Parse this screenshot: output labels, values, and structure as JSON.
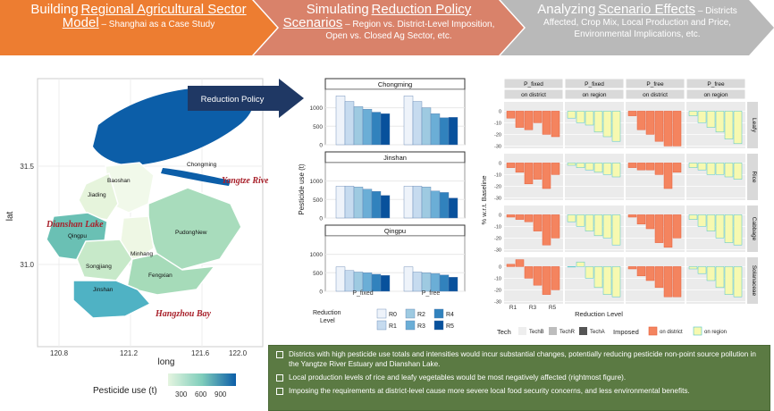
{
  "steps": [
    {
      "bold": "Building",
      "underlined": "Regional Agricultural Sector Model",
      "rest": "– Shanghai as a Case Study",
      "color": "#ed7d31"
    },
    {
      "bold": "Simulating",
      "underlined": "Reduction Policy Scenarios",
      "rest": "– Region vs. District-Level Imposition, Open vs. Closed Ag Sector, etc.",
      "color": "#d9826a"
    },
    {
      "bold": "Analyzing",
      "underlined": "Scenario Effects",
      "rest": "– Districts Affected, Crop Mix, Local Production and Price, Environmental Implications, etc.",
      "color": "#b9b9b9"
    }
  ],
  "arrow_label": "Reduction Policy",
  "map": {
    "xlabel": "long",
    "ylabel": "lat",
    "xticks": [
      "120.8",
      "121.2",
      "121.6",
      "122.0"
    ],
    "yticks": [
      "31.5",
      "31.0"
    ],
    "districts": [
      "Chongming",
      "Baoshan",
      "Jiading",
      "Qingpu",
      "PudongNew",
      "Minhang",
      "Songjiang",
      "Fengxian",
      "Jinshan"
    ],
    "annotations": [
      "Yangtze River Estuary",
      "Dianshan Lake",
      "Hangzhou Bay"
    ],
    "legend_title": "Pesticide use (t)",
    "legend_ticks": [
      "300",
      "600",
      "900"
    ],
    "colors": {
      "low": "#e5f5e0",
      "mid": "#7fcdbb",
      "high": "#0c5ea8"
    }
  },
  "bar_panels": {
    "ylabel": "Pesticide use (t)",
    "x_categories": [
      "P_fixed",
      "P_free"
    ],
    "levels": [
      "R0",
      "R1",
      "R2",
      "R3",
      "R4",
      "R5"
    ],
    "level_colors": [
      "#eef3fa",
      "#c6dbef",
      "#9ecae1",
      "#6baed6",
      "#3182bd",
      "#08519c"
    ],
    "legend_title": "Reduction Level",
    "yticks": [
      "0",
      "500",
      "1000"
    ]
  },
  "chart_data": [
    {
      "type": "bar",
      "title": "",
      "facets": [
        "Chongming",
        "Jinshan",
        "Qingpu"
      ],
      "categories": [
        "P_fixed",
        "P_free"
      ],
      "ylabel": "Pesticide use (t)",
      "ylim": [
        0,
        1400
      ],
      "series": [
        {
          "name": "R0",
          "values": {
            "Chongming": [
              1320,
              1320
            ],
            "Jinshan": [
              860,
              860
            ],
            "Qingpu": [
              660,
              660
            ]
          }
        },
        {
          "name": "R1",
          "values": {
            "Chongming": [
              1170,
              1170
            ],
            "Jinshan": [
              860,
              860
            ],
            "Qingpu": [
              560,
              520
            ]
          }
        },
        {
          "name": "R2",
          "values": {
            "Chongming": [
              1030,
              1000
            ],
            "Jinshan": [
              840,
              840
            ],
            "Qingpu": [
              520,
              500
            ]
          }
        },
        {
          "name": "R3",
          "values": {
            "Chongming": [
              960,
              840
            ],
            "Jinshan": [
              780,
              730
            ],
            "Qingpu": [
              500,
              480
            ]
          }
        },
        {
          "name": "R4",
          "values": {
            "Chongming": [
              880,
              730
            ],
            "Jinshan": [
              720,
              690
            ],
            "Qingpu": [
              460,
              440
            ]
          }
        },
        {
          "name": "R5",
          "values": {
            "Chongming": [
              840,
              740
            ],
            "Jinshan": [
              610,
              540
            ],
            "Qingpu": [
              430,
              380
            ]
          }
        }
      ]
    },
    {
      "type": "bar",
      "title": "",
      "col_facets": [
        [
          "P_fixed",
          "on district"
        ],
        [
          "P_fixed",
          "on region"
        ],
        [
          "P_free",
          "on district"
        ],
        [
          "P_free",
          "on region"
        ]
      ],
      "row_facets": [
        "Leafy",
        "Rice",
        "Cabbage",
        "Solanaceae"
      ],
      "xlabel": "Reduction Level",
      "ylabel": "% w.r.t. Baseline",
      "x_ticks": [
        "R1",
        "R3",
        "R5"
      ],
      "yticks": [
        "0",
        "-10",
        "-20",
        "-30"
      ],
      "ylim": [
        -32,
        8
      ],
      "legend": {
        "tech_title": "Tech",
        "tech": [
          "TechB",
          "TechR",
          "TechA"
        ],
        "imposed_title": "Imposed",
        "imposed": [
          "on district",
          "on region"
        ]
      },
      "colors": {
        "on district": "#f4845f",
        "on region": "#f7f9b0",
        "region_border": "#4ec4c9"
      },
      "panels": {
        "Leafy": [
          [
            -6,
            -14,
            -16,
            -10,
            -20,
            -22
          ],
          [
            -6,
            -10,
            -12,
            -18,
            -22,
            -26
          ],
          [
            -4,
            -16,
            -20,
            -26,
            -30,
            -30
          ],
          [
            -4,
            -10,
            -14,
            -18,
            -24,
            -28
          ]
        ],
        "Rice": [
          [
            -4,
            -8,
            -18,
            -14,
            -22,
            -10
          ],
          [
            -2,
            -4,
            -6,
            -8,
            -10,
            -12
          ],
          [
            -4,
            -6,
            -6,
            -10,
            -22,
            -8
          ],
          [
            -4,
            -6,
            -10,
            -10,
            -12,
            -14
          ]
        ],
        "Cabbage": [
          [
            -2,
            -4,
            -6,
            -14,
            -26,
            -20
          ],
          [
            -6,
            -10,
            -14,
            -18,
            -20,
            -26
          ],
          [
            -2,
            -8,
            -12,
            -24,
            -28,
            -20
          ],
          [
            -4,
            -10,
            -14,
            -20,
            -24,
            -26
          ]
        ],
        "Solanaceae": [
          [
            2,
            6,
            -10,
            -16,
            -24,
            -20
          ],
          [
            0,
            4,
            -10,
            -18,
            -24,
            -26
          ],
          [
            -2,
            -8,
            -12,
            -18,
            -26,
            -26
          ],
          [
            -2,
            -6,
            -12,
            -18,
            -24,
            -26
          ]
        ]
      }
    }
  ],
  "summary": [
    "Districts with high pesticide use totals and intensities would incur substantial changes, potentially reducing pesticide non-point source pollution in the Yangtze River Estuary and Dianshan Lake.",
    "Local production levels of rice and leafy vegetables would be most negatively affected (rightmost figure).",
    "Imposing the requirements at district-level cause more severe local food security concerns, and less environmental benefits."
  ]
}
